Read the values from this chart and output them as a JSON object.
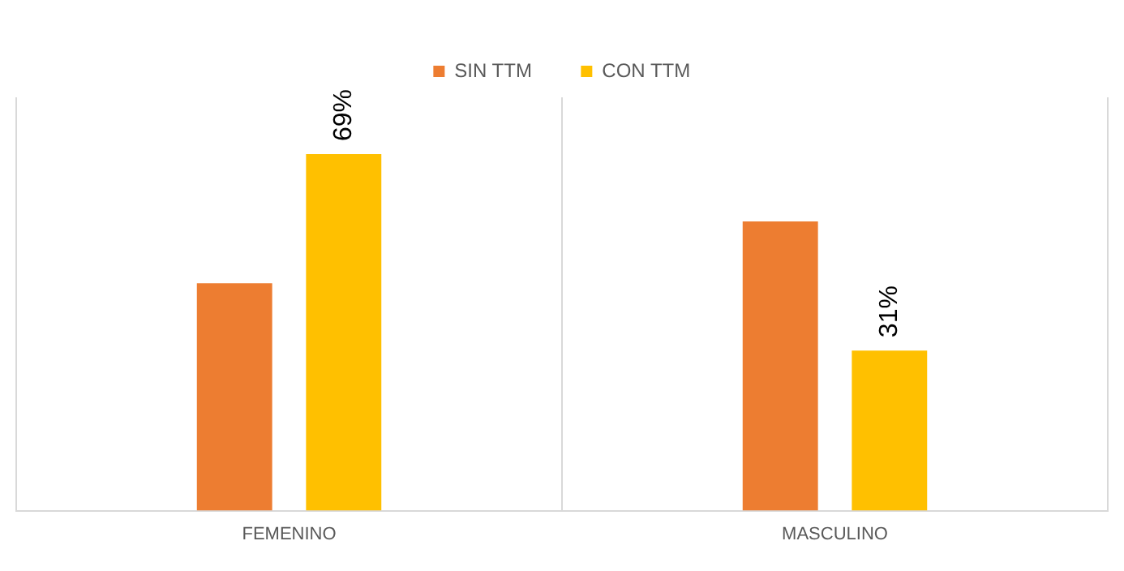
{
  "chart_data": {
    "type": "bar",
    "categories": [
      "FEMENINO",
      "MASCULINO"
    ],
    "series": [
      {
        "name": "SIN TTM",
        "color": "#ed7d31",
        "values": [
          44,
          56
        ]
      },
      {
        "name": "CON TTM",
        "color": "#ffc000",
        "values": [
          69,
          31
        ],
        "value_labels": [
          "69%",
          "31%"
        ]
      }
    ],
    "ylim": [
      0,
      80
    ],
    "grid": "x",
    "legend": "top",
    "tick_labels": "x"
  }
}
